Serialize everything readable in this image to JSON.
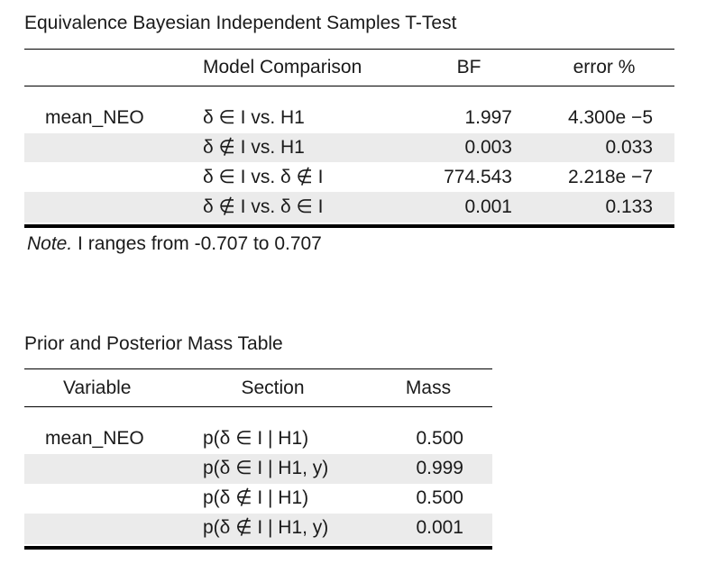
{
  "equivalence_table": {
    "title": "Equivalence Bayesian Independent Samples T-Test",
    "headers": {
      "model_comparison": "Model Comparison",
      "bf": "BF",
      "error": "error %"
    },
    "variable": "mean_NEO",
    "rows": [
      {
        "comparison": "δ ∈ I vs. H1",
        "bf": "1.997",
        "error": "4.300e −5"
      },
      {
        "comparison": "δ ∉ I vs. H1",
        "bf": "0.003",
        "error": "0.033"
      },
      {
        "comparison": "δ ∈ I vs. δ ∉ I",
        "bf": "774.543",
        "error": "2.218e −7"
      },
      {
        "comparison": "δ ∉ I vs. δ ∈ I",
        "bf": "0.001",
        "error": "0.133"
      }
    ],
    "note_label": "Note.",
    "note_text": " I ranges from -0.707 to 0.707"
  },
  "mass_table": {
    "title": "Prior and Posterior Mass Table",
    "headers": {
      "variable": "Variable",
      "section": "Section",
      "mass": "Mass"
    },
    "variable": "mean_NEO",
    "rows": [
      {
        "section": "p(δ ∈ I | H1)",
        "mass": "0.500"
      },
      {
        "section": "p(δ ∈ I | H1, y)",
        "mass": "0.999"
      },
      {
        "section": "p(δ ∉ I | H1)",
        "mass": "0.500"
      },
      {
        "section": "p(δ ∉ I | H1, y)",
        "mass": "0.001"
      }
    ]
  }
}
